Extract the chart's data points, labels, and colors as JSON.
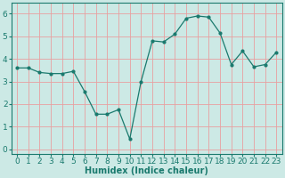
{
  "x": [
    0,
    1,
    2,
    3,
    4,
    5,
    6,
    7,
    8,
    9,
    10,
    11,
    12,
    13,
    14,
    15,
    16,
    17,
    18,
    19,
    20,
    21,
    22,
    23
  ],
  "y": [
    3.6,
    3.6,
    3.4,
    3.35,
    3.35,
    3.45,
    2.55,
    1.55,
    1.55,
    1.75,
    0.45,
    3.0,
    4.8,
    4.75,
    5.1,
    5.8,
    5.9,
    5.85,
    5.15,
    3.75,
    4.35,
    3.65,
    3.75,
    4.3
  ],
  "line_color": "#1a7a6e",
  "marker": "o",
  "marker_size": 2,
  "bg_color": "#cce9e5",
  "grid_color_major": "#f0c0c0",
  "grid_color_minor": "#f0c0c0",
  "xlabel": "Humidex (Indice chaleur)",
  "ylim": [
    -0.2,
    6.5
  ],
  "xlim": [
    -0.5,
    23.5
  ],
  "yticks": [
    0,
    1,
    2,
    3,
    4,
    5,
    6
  ],
  "xticks": [
    0,
    1,
    2,
    3,
    4,
    5,
    6,
    7,
    8,
    9,
    10,
    11,
    12,
    13,
    14,
    15,
    16,
    17,
    18,
    19,
    20,
    21,
    22,
    23
  ],
  "xlabel_fontsize": 7,
  "tick_fontsize": 6.5
}
